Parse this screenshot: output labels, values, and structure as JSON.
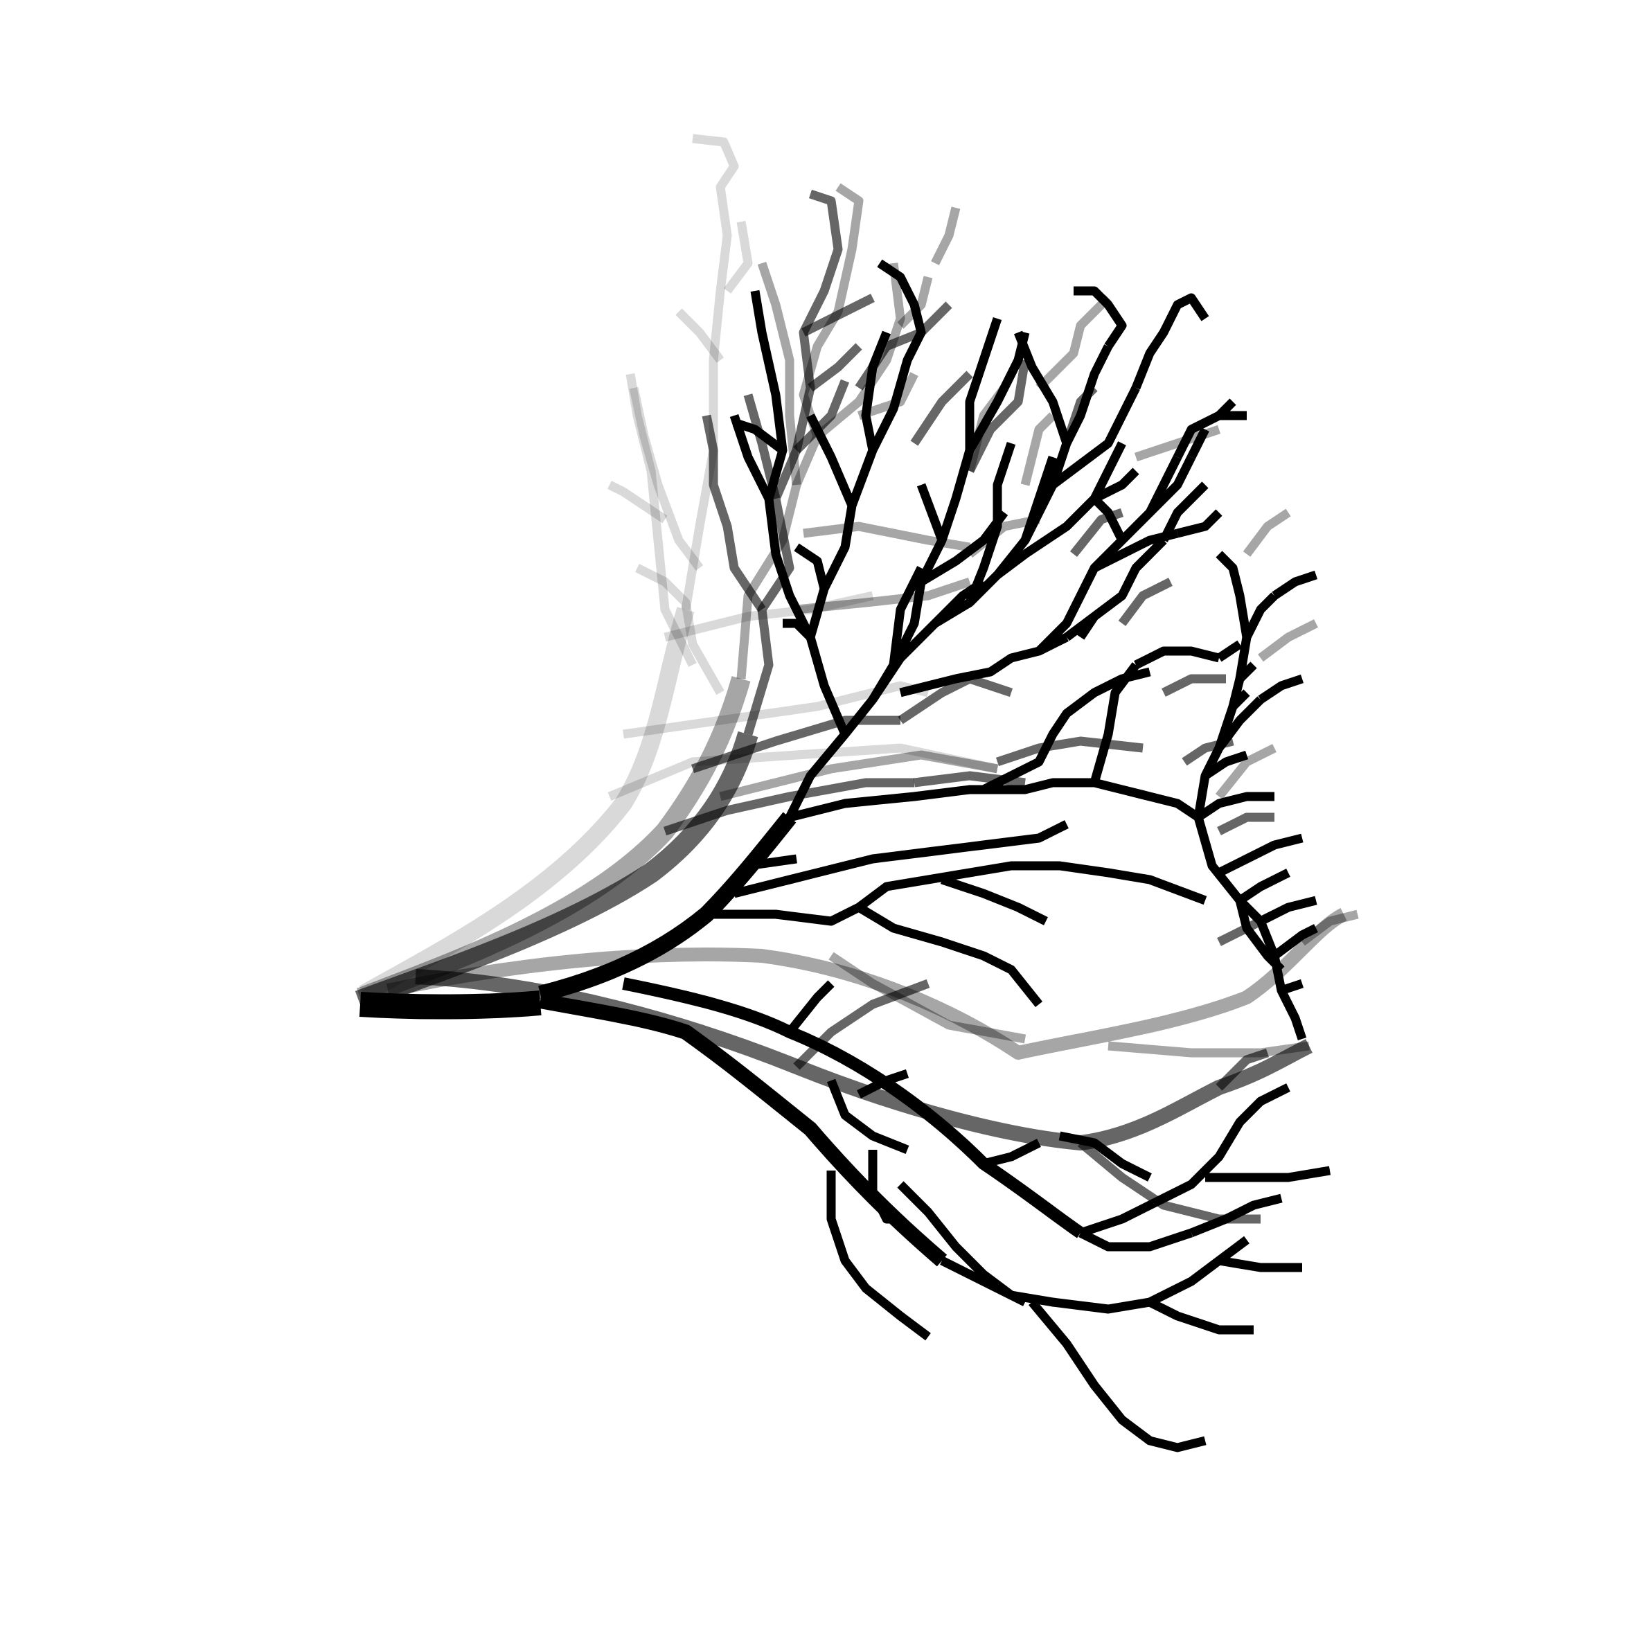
{
  "illustration": {
    "subject": "branching-tree-silhouettes",
    "background_color": "#ffffff",
    "stroke_color": "#000000",
    "layer_opacities": [
      0.15,
      0.35,
      0.6,
      1.0
    ]
  }
}
